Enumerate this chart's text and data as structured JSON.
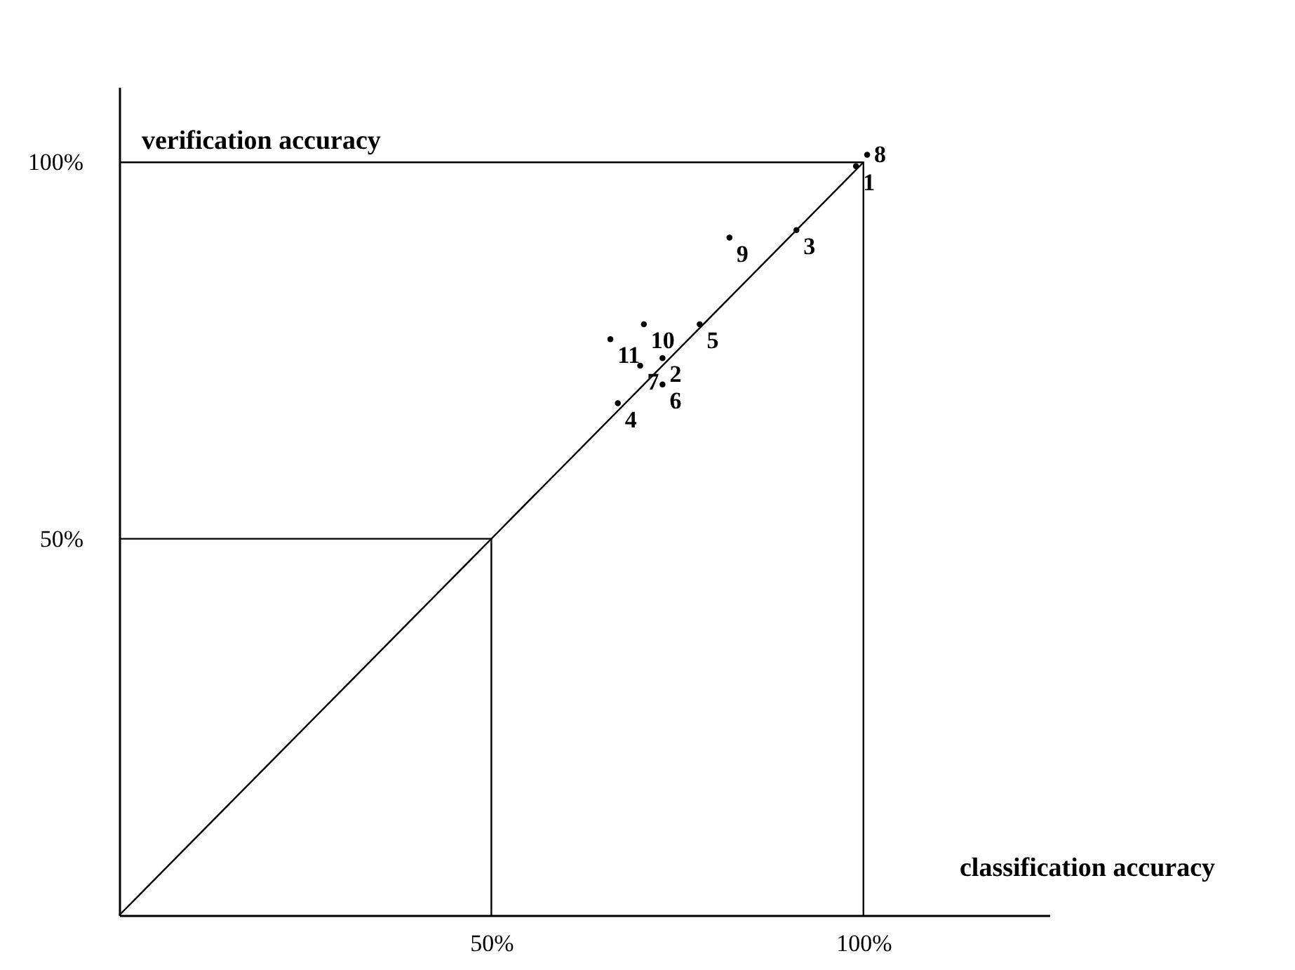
{
  "chart_data": {
    "type": "scatter",
    "xlabel": "classification accuracy",
    "ylabel": "verification accuracy",
    "xlim": [
      0,
      125
    ],
    "ylim": [
      0,
      110
    ],
    "xticks": [
      {
        "value": 50,
        "label": "50%"
      },
      {
        "value": 100,
        "label": "100%"
      }
    ],
    "yticks": [
      {
        "value": 50,
        "label": "50%"
      },
      {
        "value": 100,
        "label": "100%"
      }
    ],
    "series": [
      {
        "type": "line",
        "color": "#000000",
        "x": [
          0,
          100
        ],
        "values": [
          0,
          100
        ]
      },
      {
        "type": "line",
        "color": "#000000",
        "x": [
          0,
          50,
          50
        ],
        "values": [
          50,
          50,
          0
        ]
      },
      {
        "type": "line",
        "color": "#000000",
        "x": [
          0,
          100,
          100
        ],
        "values": [
          100,
          100,
          0
        ]
      },
      {
        "name": "1",
        "marker": "circle",
        "color": "#000000",
        "x": [
          99
        ],
        "values": [
          99.5
        ]
      },
      {
        "name": "2",
        "marker": "circle",
        "color": "#000000",
        "x": [
          73
        ],
        "values": [
          74
        ]
      },
      {
        "name": "3",
        "marker": "circle",
        "color": "#000000",
        "x": [
          91
        ],
        "values": [
          91
        ]
      },
      {
        "name": "4",
        "marker": "circle",
        "color": "#000000",
        "x": [
          67
        ],
        "values": [
          68
        ]
      },
      {
        "name": "5",
        "marker": "circle",
        "color": "#000000",
        "x": [
          78
        ],
        "values": [
          78.5
        ]
      },
      {
        "name": "6",
        "marker": "circle",
        "color": "#000000",
        "x": [
          73
        ],
        "values": [
          70.5
        ]
      },
      {
        "name": "7",
        "marker": "circle",
        "color": "#000000",
        "x": [
          70
        ],
        "values": [
          73
        ]
      },
      {
        "name": "8",
        "marker": "circle",
        "color": "#000000",
        "x": [
          100.5
        ],
        "values": [
          101
        ]
      },
      {
        "name": "9",
        "marker": "circle",
        "color": "#000000",
        "x": [
          82
        ],
        "values": [
          90
        ]
      },
      {
        "name": "10",
        "marker": "circle",
        "color": "#000000",
        "x": [
          70.5
        ],
        "values": [
          78.5
        ]
      },
      {
        "name": "11",
        "marker": "circle",
        "color": "#000000",
        "x": [
          66
        ],
        "values": [
          76.5
        ]
      }
    ]
  }
}
